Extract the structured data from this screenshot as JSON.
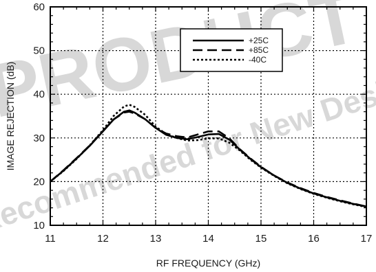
{
  "chart_data": {
    "type": "line",
    "title": "",
    "xlabel": "RF FREQUENCY (GHz)",
    "ylabel": "IMAGE REJECTION (dB)",
    "xlim": [
      11,
      17
    ],
    "ylim": [
      10,
      60
    ],
    "xticks": [
      "11",
      "12",
      "13",
      "14",
      "15",
      "16",
      "17"
    ],
    "yticks": [
      "10",
      "20",
      "30",
      "40",
      "50",
      "60"
    ],
    "grid": "dotted",
    "legend_position": "top-right",
    "series": [
      {
        "name": "+25C",
        "style": "solid",
        "x": [
          11,
          11.25,
          11.5,
          11.75,
          12,
          12.2,
          12.4,
          12.5,
          12.6,
          12.8,
          13,
          13.2,
          13.4,
          13.6,
          13.8,
          14,
          14.2,
          14.4,
          14.6,
          14.8,
          15,
          15.25,
          15.5,
          15.75,
          16,
          16.25,
          16.5,
          16.75,
          17
        ],
        "y": [
          20,
          22.5,
          25.3,
          28.2,
          31.5,
          34.2,
          36,
          36.3,
          35.8,
          34.3,
          32.3,
          30.7,
          30,
          29.7,
          30.2,
          30.8,
          30.9,
          29.6,
          27.3,
          25.2,
          23.3,
          21.4,
          19.7,
          18.4,
          17.3,
          16.4,
          15.6,
          14.9,
          14.3
        ]
      },
      {
        "name": "+85C",
        "style": "dashed",
        "x": [
          11,
          11.25,
          11.5,
          11.75,
          12,
          12.2,
          12.4,
          12.5,
          12.6,
          12.8,
          13,
          13.2,
          13.4,
          13.6,
          13.8,
          14,
          14.2,
          14.4,
          14.6,
          14.8,
          15,
          15.25,
          15.5,
          15.75,
          16,
          16.25,
          16.5,
          16.75,
          17
        ],
        "y": [
          20,
          22.6,
          25.4,
          28.3,
          31.6,
          34.2,
          35.8,
          36,
          35.6,
          34.3,
          32.3,
          31,
          30.4,
          30.1,
          30.8,
          31.5,
          31.5,
          29.9,
          27.4,
          25.3,
          23.4,
          21.4,
          19.8,
          18.5,
          17.4,
          16.5,
          15.7,
          15,
          14.3
        ]
      },
      {
        "name": "-40C",
        "style": "dotted",
        "x": [
          11,
          11.25,
          11.5,
          11.75,
          12,
          12.2,
          12.4,
          12.5,
          12.6,
          12.8,
          13,
          13.2,
          13.4,
          13.6,
          13.8,
          14,
          14.2,
          14.4,
          14.6,
          14.8,
          15,
          15.25,
          15.5,
          15.75,
          16,
          16.25,
          16.5,
          16.75,
          17
        ],
        "y": [
          20,
          22.4,
          25.2,
          28.3,
          31.8,
          35,
          37.2,
          37.6,
          37.1,
          35.3,
          32.6,
          30.9,
          30,
          29.4,
          29.5,
          29.9,
          29.9,
          28.9,
          27.1,
          25,
          23.2,
          21.3,
          19.6,
          18.3,
          17.2,
          16.3,
          15.5,
          14.8,
          14.2
        ]
      }
    ]
  },
  "watermark": {
    "line1": "PRODUCT",
    "line2": "Not Recommended for New Designs"
  }
}
